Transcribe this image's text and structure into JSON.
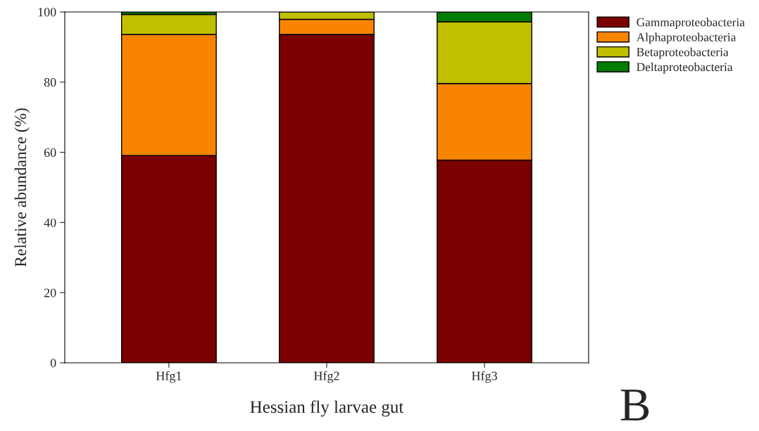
{
  "chart_data": {
    "type": "bar",
    "stacked": true,
    "xlabel": "Hessian fly larvae gut",
    "ylabel": "Relative abundance (%)",
    "categories": [
      "Hfg1",
      "Hfg2",
      "Hfg3"
    ],
    "series": [
      {
        "name": "Gammaproteobacteria",
        "color": "#7b0000",
        "values": [
          59.1,
          93.6,
          57.8
        ]
      },
      {
        "name": "Alphaproteobacteria",
        "color": "#f98400",
        "values": [
          34.5,
          4.3,
          21.8
        ]
      },
      {
        "name": "Betaproteobacteria",
        "color": "#c0c000",
        "values": [
          5.7,
          2.1,
          17.6
        ]
      },
      {
        "name": "Deltaproteobacteria",
        "color": "#007d00",
        "values": [
          0.7,
          null,
          2.8
        ]
      }
    ],
    "ylim": [
      0,
      100
    ],
    "yticks": [
      0,
      20,
      40,
      60,
      80,
      100
    ],
    "grid": false,
    "legend": "top right",
    "annotations": [
      "B"
    ]
  }
}
